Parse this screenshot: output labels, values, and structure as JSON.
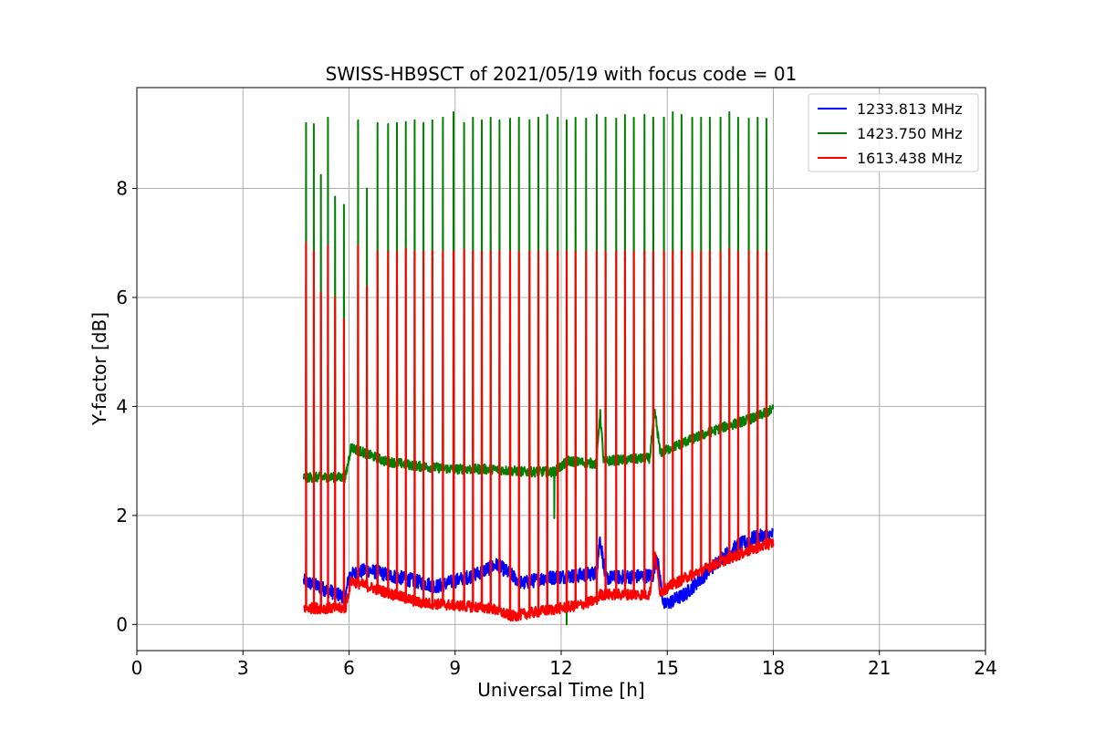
{
  "chart_data": {
    "type": "line",
    "title": "SWISS-HB9SCT of 2021/05/19 with focus code = 01",
    "xlabel": "Universal Time [h]",
    "ylabel": "Y-factor [dB]",
    "xlim": [
      0,
      24
    ],
    "ylim": [
      -0.48,
      9.85
    ],
    "xticks": [
      "0",
      "3",
      "6",
      "9",
      "12",
      "15",
      "18",
      "21",
      "24"
    ],
    "yticks": [
      "0",
      "2",
      "4",
      "6",
      "8"
    ],
    "grid": true,
    "legend_position": "top-right",
    "series": [
      {
        "name": "1233.813 MHz",
        "color": "#0000ff",
        "baseline": [
          [
            4.72,
            0.8
          ],
          [
            5.9,
            0.5
          ],
          [
            6.0,
            0.9
          ],
          [
            6.5,
            1.0
          ],
          [
            7.5,
            0.85
          ],
          [
            8.5,
            0.7
          ],
          [
            9.5,
            0.9
          ],
          [
            10.2,
            1.1
          ],
          [
            10.9,
            0.75
          ],
          [
            11.5,
            0.85
          ],
          [
            12.5,
            0.9
          ],
          [
            13.0,
            0.95
          ],
          [
            13.1,
            1.6
          ],
          [
            13.25,
            0.85
          ],
          [
            14.6,
            0.9
          ],
          [
            14.7,
            1.3
          ],
          [
            14.9,
            0.35
          ],
          [
            15.5,
            0.55
          ],
          [
            16.5,
            1.2
          ],
          [
            17.0,
            1.45
          ],
          [
            17.5,
            1.6
          ],
          [
            18.0,
            1.65
          ]
        ],
        "noise": 0.13,
        "spikes": []
      },
      {
        "name": "1423.750 MHz",
        "color": "#008000",
        "baseline": [
          [
            4.72,
            2.7
          ],
          [
            5.9,
            2.7
          ],
          [
            6.05,
            3.25
          ],
          [
            7.0,
            3.0
          ],
          [
            8.0,
            2.9
          ],
          [
            9.0,
            2.85
          ],
          [
            10.0,
            2.85
          ],
          [
            11.0,
            2.8
          ],
          [
            11.8,
            2.8
          ],
          [
            12.2,
            3.0
          ],
          [
            13.0,
            2.95
          ],
          [
            13.1,
            3.9
          ],
          [
            13.2,
            3.0
          ],
          [
            14.5,
            3.05
          ],
          [
            14.65,
            3.9
          ],
          [
            14.8,
            3.15
          ],
          [
            15.5,
            3.35
          ],
          [
            16.5,
            3.6
          ],
          [
            17.5,
            3.8
          ],
          [
            18.0,
            3.95
          ]
        ],
        "noise": 0.09,
        "spikes": [
          [
            4.78,
            9.2
          ],
          [
            5.0,
            9.18
          ],
          [
            5.2,
            8.25
          ],
          [
            5.4,
            9.3
          ],
          [
            5.6,
            7.85
          ],
          [
            5.85,
            7.7
          ],
          [
            6.25,
            9.25
          ],
          [
            6.5,
            8.0
          ],
          [
            6.8,
            9.2
          ],
          [
            7.1,
            9.18
          ],
          [
            7.35,
            9.2
          ],
          [
            7.6,
            9.22
          ],
          [
            7.85,
            9.25
          ],
          [
            8.1,
            9.2
          ],
          [
            8.35,
            9.25
          ],
          [
            8.65,
            9.3
          ],
          [
            8.95,
            9.4
          ],
          [
            9.25,
            9.2
          ],
          [
            9.5,
            9.3
          ],
          [
            9.75,
            9.25
          ],
          [
            10.0,
            9.3
          ],
          [
            10.25,
            9.25
          ],
          [
            10.55,
            9.28
          ],
          [
            10.8,
            9.3
          ],
          [
            11.1,
            9.25
          ],
          [
            11.35,
            9.3
          ],
          [
            11.6,
            9.35
          ],
          [
            11.9,
            9.3
          ],
          [
            12.15,
            9.25
          ],
          [
            12.4,
            9.3
          ],
          [
            12.7,
            9.28
          ],
          [
            13.0,
            9.35
          ],
          [
            13.25,
            9.3
          ],
          [
            13.55,
            9.28
          ],
          [
            13.8,
            9.35
          ],
          [
            14.05,
            9.3
          ],
          [
            14.35,
            9.35
          ],
          [
            14.6,
            9.3
          ],
          [
            14.9,
            9.3
          ],
          [
            15.15,
            9.4
          ],
          [
            15.4,
            9.35
          ],
          [
            15.7,
            9.3
          ],
          [
            15.95,
            9.3
          ],
          [
            16.2,
            9.3
          ],
          [
            16.5,
            9.3
          ],
          [
            16.75,
            9.4
          ],
          [
            17.0,
            9.3
          ],
          [
            17.3,
            9.28
          ],
          [
            17.55,
            9.3
          ],
          [
            17.8,
            9.28
          ]
        ],
        "dips": [
          [
            11.6,
            1.7
          ],
          [
            11.8,
            1.95
          ],
          [
            12.15,
            0.0
          ],
          [
            12.4,
            2.35
          ]
        ]
      },
      {
        "name": "1613.438 MHz",
        "color": "#ff0000",
        "baseline": [
          [
            4.72,
            0.3
          ],
          [
            5.9,
            0.3
          ],
          [
            6.05,
            0.8
          ],
          [
            7.0,
            0.6
          ],
          [
            8.0,
            0.4
          ],
          [
            9.0,
            0.35
          ],
          [
            10.0,
            0.3
          ],
          [
            10.6,
            0.15
          ],
          [
            11.5,
            0.25
          ],
          [
            12.5,
            0.35
          ],
          [
            13.0,
            0.45
          ],
          [
            13.1,
            0.55
          ],
          [
            14.5,
            0.55
          ],
          [
            14.65,
            1.3
          ],
          [
            14.8,
            0.6
          ],
          [
            15.5,
            0.85
          ],
          [
            16.5,
            1.15
          ],
          [
            17.5,
            1.4
          ],
          [
            18.0,
            1.5
          ]
        ],
        "noise": 0.1,
        "spikes": [
          [
            4.78,
            7.0
          ],
          [
            5.0,
            6.85
          ],
          [
            5.2,
            6.1
          ],
          [
            5.4,
            6.95
          ],
          [
            5.6,
            6.0
          ],
          [
            5.85,
            5.6
          ],
          [
            6.25,
            6.95
          ],
          [
            6.5,
            6.2
          ],
          [
            6.8,
            6.85
          ],
          [
            7.1,
            6.85
          ],
          [
            7.35,
            6.85
          ],
          [
            7.6,
            6.9
          ],
          [
            7.85,
            6.85
          ],
          [
            8.1,
            6.85
          ],
          [
            8.35,
            6.85
          ],
          [
            8.65,
            6.85
          ],
          [
            8.95,
            6.85
          ],
          [
            9.25,
            6.88
          ],
          [
            9.5,
            6.85
          ],
          [
            9.75,
            6.85
          ],
          [
            10.0,
            6.85
          ],
          [
            10.25,
            6.85
          ],
          [
            10.55,
            6.85
          ],
          [
            10.8,
            6.85
          ],
          [
            11.1,
            6.85
          ],
          [
            11.35,
            6.85
          ],
          [
            11.6,
            6.85
          ],
          [
            11.9,
            6.85
          ],
          [
            12.15,
            6.85
          ],
          [
            12.4,
            6.85
          ],
          [
            12.7,
            6.85
          ],
          [
            13.0,
            6.85
          ],
          [
            13.25,
            6.85
          ],
          [
            13.55,
            6.85
          ],
          [
            13.8,
            6.85
          ],
          [
            14.05,
            6.85
          ],
          [
            14.35,
            6.85
          ],
          [
            14.6,
            6.85
          ],
          [
            14.9,
            6.85
          ],
          [
            15.15,
            6.85
          ],
          [
            15.4,
            6.85
          ],
          [
            15.7,
            6.85
          ],
          [
            15.95,
            6.85
          ],
          [
            16.2,
            6.85
          ],
          [
            16.5,
            6.85
          ],
          [
            16.75,
            6.9
          ],
          [
            17.0,
            6.85
          ],
          [
            17.3,
            6.85
          ],
          [
            17.55,
            6.85
          ],
          [
            17.8,
            6.85
          ]
        ]
      }
    ]
  }
}
